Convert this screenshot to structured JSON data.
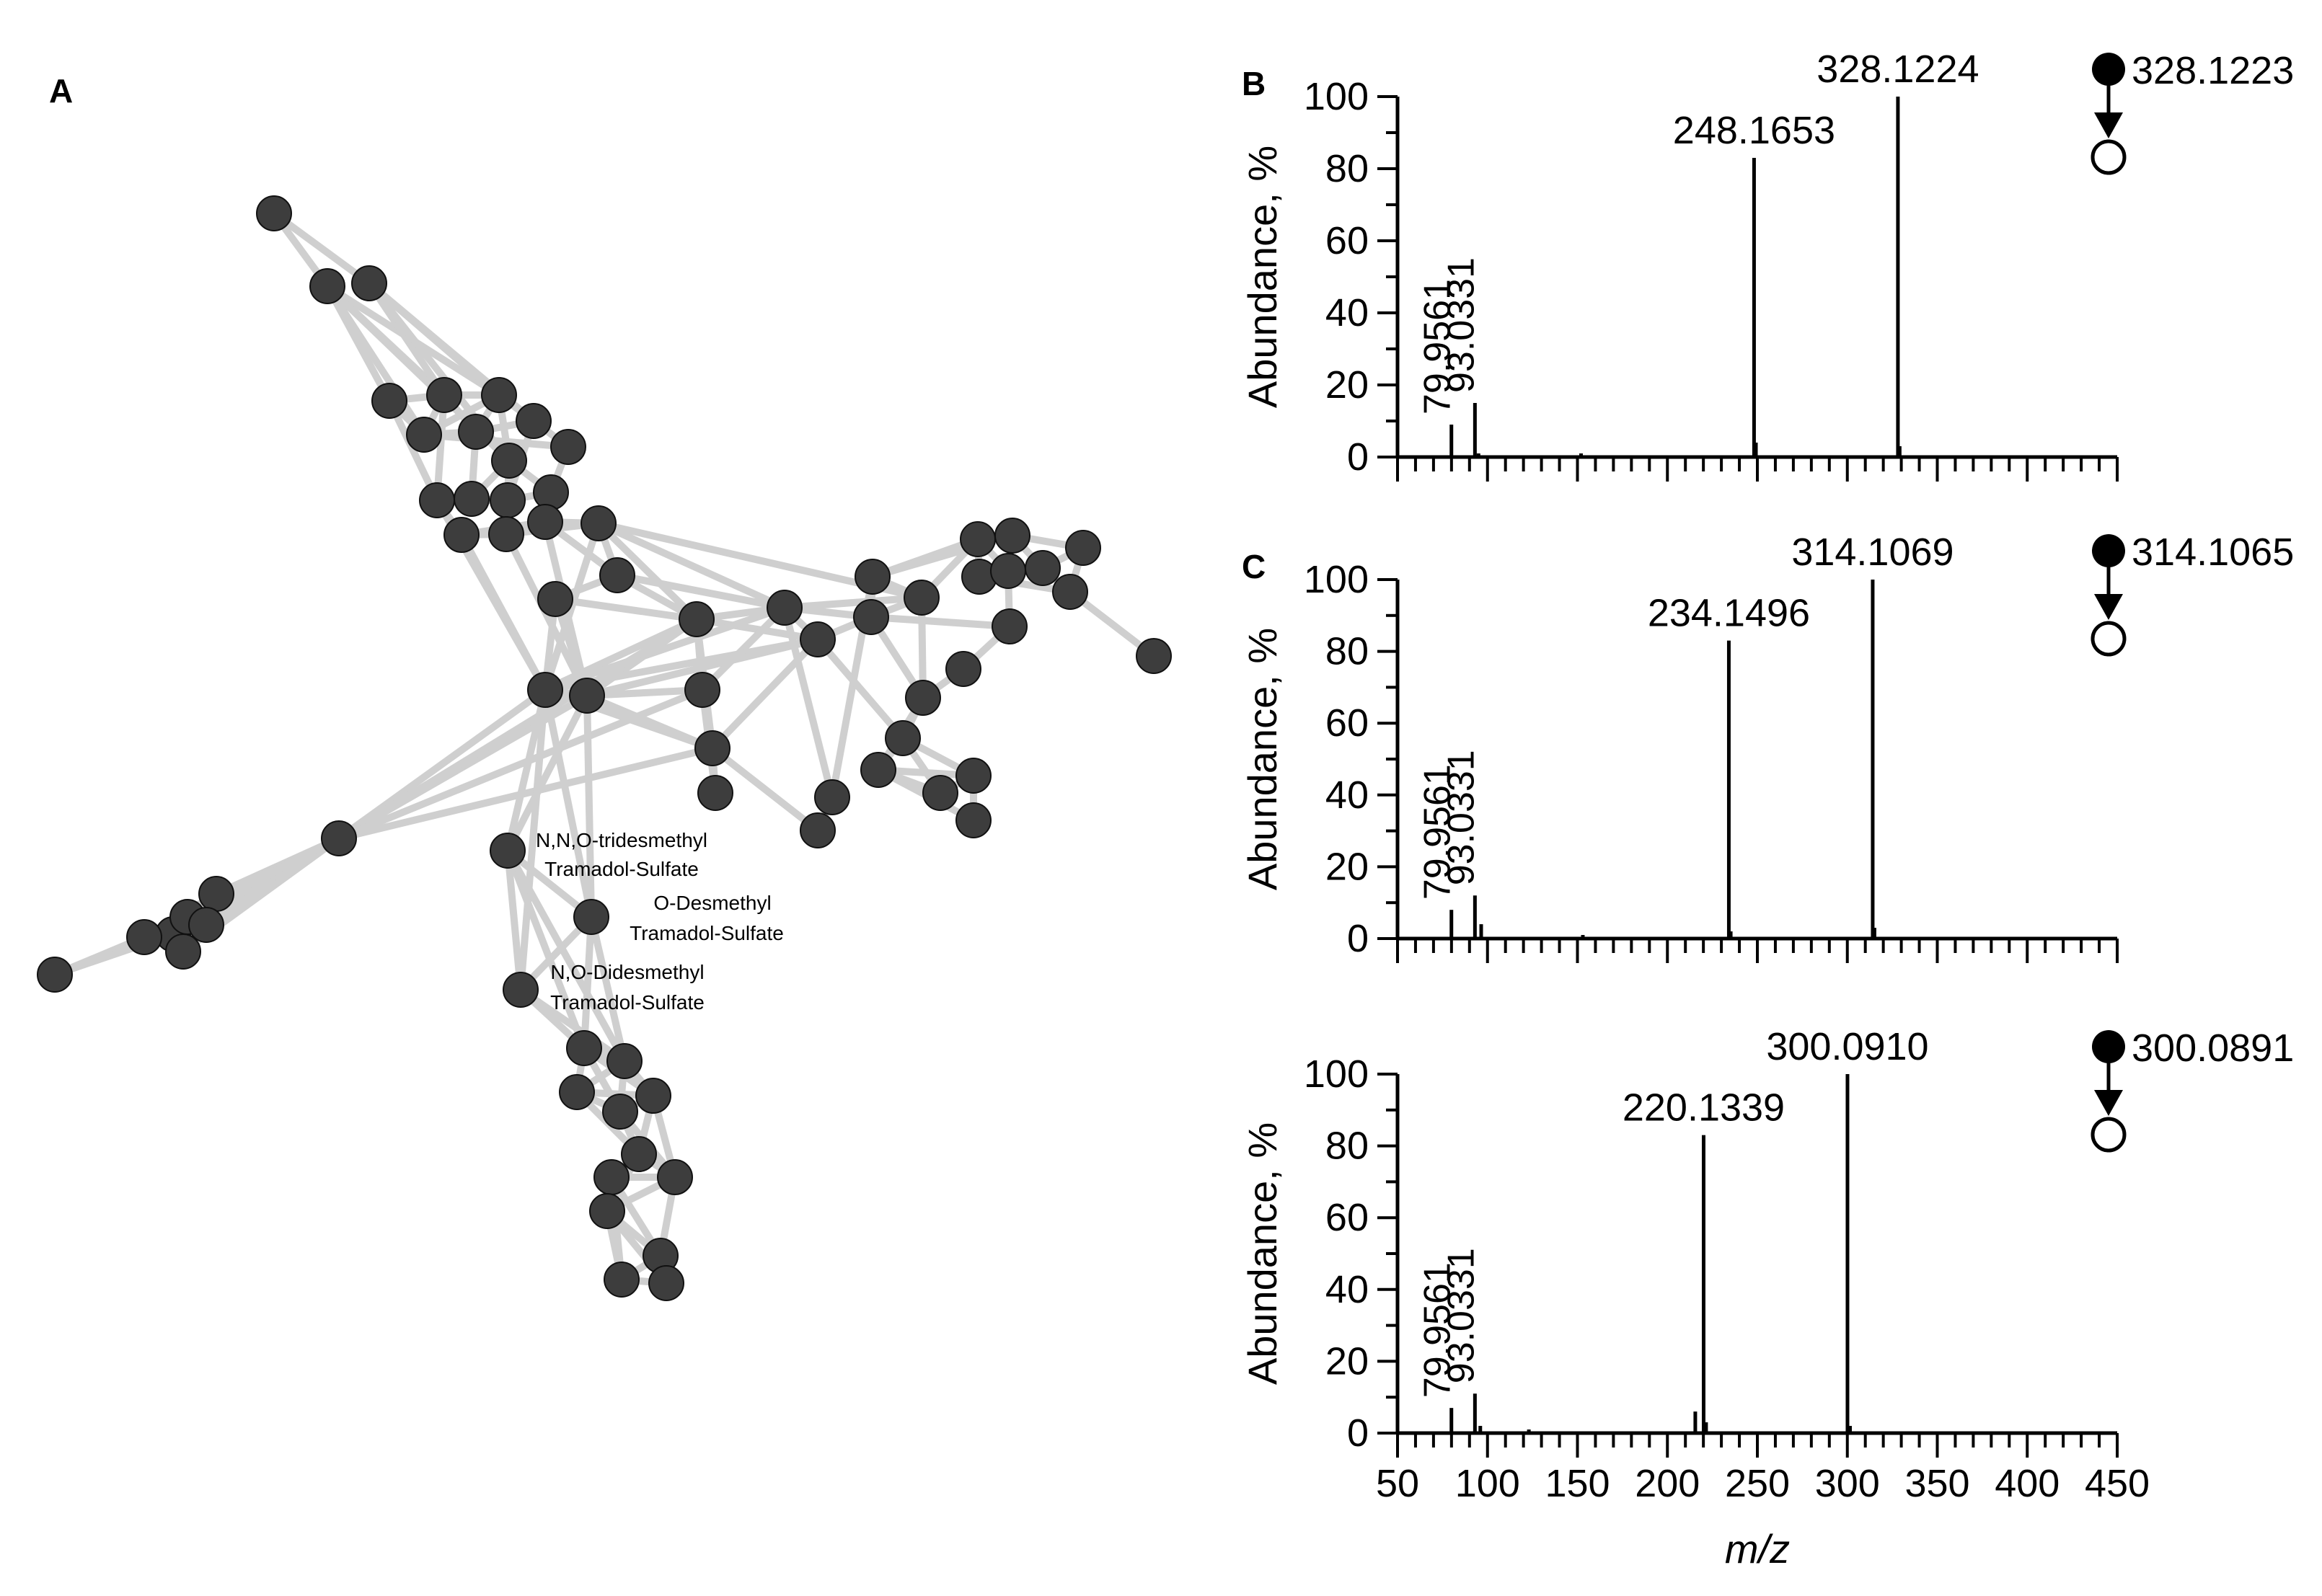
{
  "panels": {
    "A": "A",
    "B": "B",
    "C": "C"
  },
  "network": {
    "node_count": 72,
    "annotations": [
      {
        "line1": "N,N,O-tridesmethyl",
        "line2": "Tramadol-Sulfate"
      },
      {
        "line1": "O-Desmethyl",
        "line2": "Tramadol-Sulfate"
      },
      {
        "line1": "N,O-Didesmethyl",
        "line2": "Tramadol-Sulfate"
      }
    ]
  },
  "colors": {
    "node_fill": "#3d3d3d",
    "edge": "#cfcfcf",
    "ink": "#000000"
  },
  "chart_data": [
    {
      "type": "bar",
      "panel": "B",
      "ylabel": "Abundance, %",
      "xlabel": "m/z",
      "xlim": [
        50,
        450
      ],
      "ylim": [
        0,
        100
      ],
      "xticks": [
        "50",
        "100",
        "150",
        "200",
        "250",
        "300",
        "350",
        "400",
        "450"
      ],
      "yticks": [
        "0",
        "20",
        "40",
        "60",
        "80",
        "100"
      ],
      "precursor_label": "328.1223",
      "peaks": [
        {
          "mz": 79.9561,
          "abundance": 9,
          "label": "79.9561",
          "rotated": true
        },
        {
          "mz": 93.0331,
          "abundance": 15,
          "label": "93.0331",
          "rotated": true
        },
        {
          "mz": 95.0,
          "abundance": 1,
          "label": ""
        },
        {
          "mz": 152.0,
          "abundance": 1,
          "label": ""
        },
        {
          "mz": 248.1653,
          "abundance": 83,
          "label": "248.1653",
          "rotated": false
        },
        {
          "mz": 249.2,
          "abundance": 4,
          "label": ""
        },
        {
          "mz": 328.1224,
          "abundance": 100,
          "label": "328.1224",
          "rotated": false
        },
        {
          "mz": 329.1,
          "abundance": 3,
          "label": ""
        }
      ]
    },
    {
      "type": "bar",
      "panel": "C",
      "ylabel": "Abundance, %",
      "xlabel": "m/z",
      "xlim": [
        50,
        450
      ],
      "ylim": [
        0,
        100
      ],
      "xticks": [
        "50",
        "100",
        "150",
        "200",
        "250",
        "300",
        "350",
        "400",
        "450"
      ],
      "yticks": [
        "0",
        "20",
        "40",
        "60",
        "80",
        "100"
      ],
      "precursor_label": "314.1065",
      "peaks": [
        {
          "mz": 79.9561,
          "abundance": 8,
          "label": "79.9561",
          "rotated": true
        },
        {
          "mz": 93.0331,
          "abundance": 12,
          "label": "93.0331",
          "rotated": true
        },
        {
          "mz": 96.5,
          "abundance": 4,
          "label": ""
        },
        {
          "mz": 153.0,
          "abundance": 1,
          "label": ""
        },
        {
          "mz": 234.1496,
          "abundance": 83,
          "label": "234.1496",
          "rotated": false
        },
        {
          "mz": 235.2,
          "abundance": 2,
          "label": ""
        },
        {
          "mz": 314.1069,
          "abundance": 100,
          "label": "314.1069",
          "rotated": false
        },
        {
          "mz": 315.1,
          "abundance": 3,
          "label": ""
        }
      ]
    },
    {
      "type": "bar",
      "panel": "",
      "ylabel": "Abundance, %",
      "xlabel": "m/z",
      "xlim": [
        50,
        450
      ],
      "ylim": [
        0,
        100
      ],
      "xticks": [
        "50",
        "100",
        "150",
        "200",
        "250",
        "300",
        "350",
        "400",
        "450"
      ],
      "yticks": [
        "0",
        "20",
        "40",
        "60",
        "80",
        "100"
      ],
      "precursor_label": "300.0891",
      "peaks": [
        {
          "mz": 79.9561,
          "abundance": 7,
          "label": "79.9561",
          "rotated": true
        },
        {
          "mz": 93.0331,
          "abundance": 11,
          "label": "93.0331",
          "rotated": true
        },
        {
          "mz": 96.0,
          "abundance": 2,
          "label": ""
        },
        {
          "mz": 123.0,
          "abundance": 1,
          "label": ""
        },
        {
          "mz": 215.5,
          "abundance": 6,
          "label": ""
        },
        {
          "mz": 220.1339,
          "abundance": 83,
          "label": "220.1339",
          "rotated": false
        },
        {
          "mz": 221.5,
          "abundance": 3,
          "label": ""
        },
        {
          "mz": 300.091,
          "abundance": 100,
          "label": "300.0910",
          "rotated": false
        },
        {
          "mz": 301.5,
          "abundance": 2,
          "label": ""
        }
      ]
    }
  ]
}
